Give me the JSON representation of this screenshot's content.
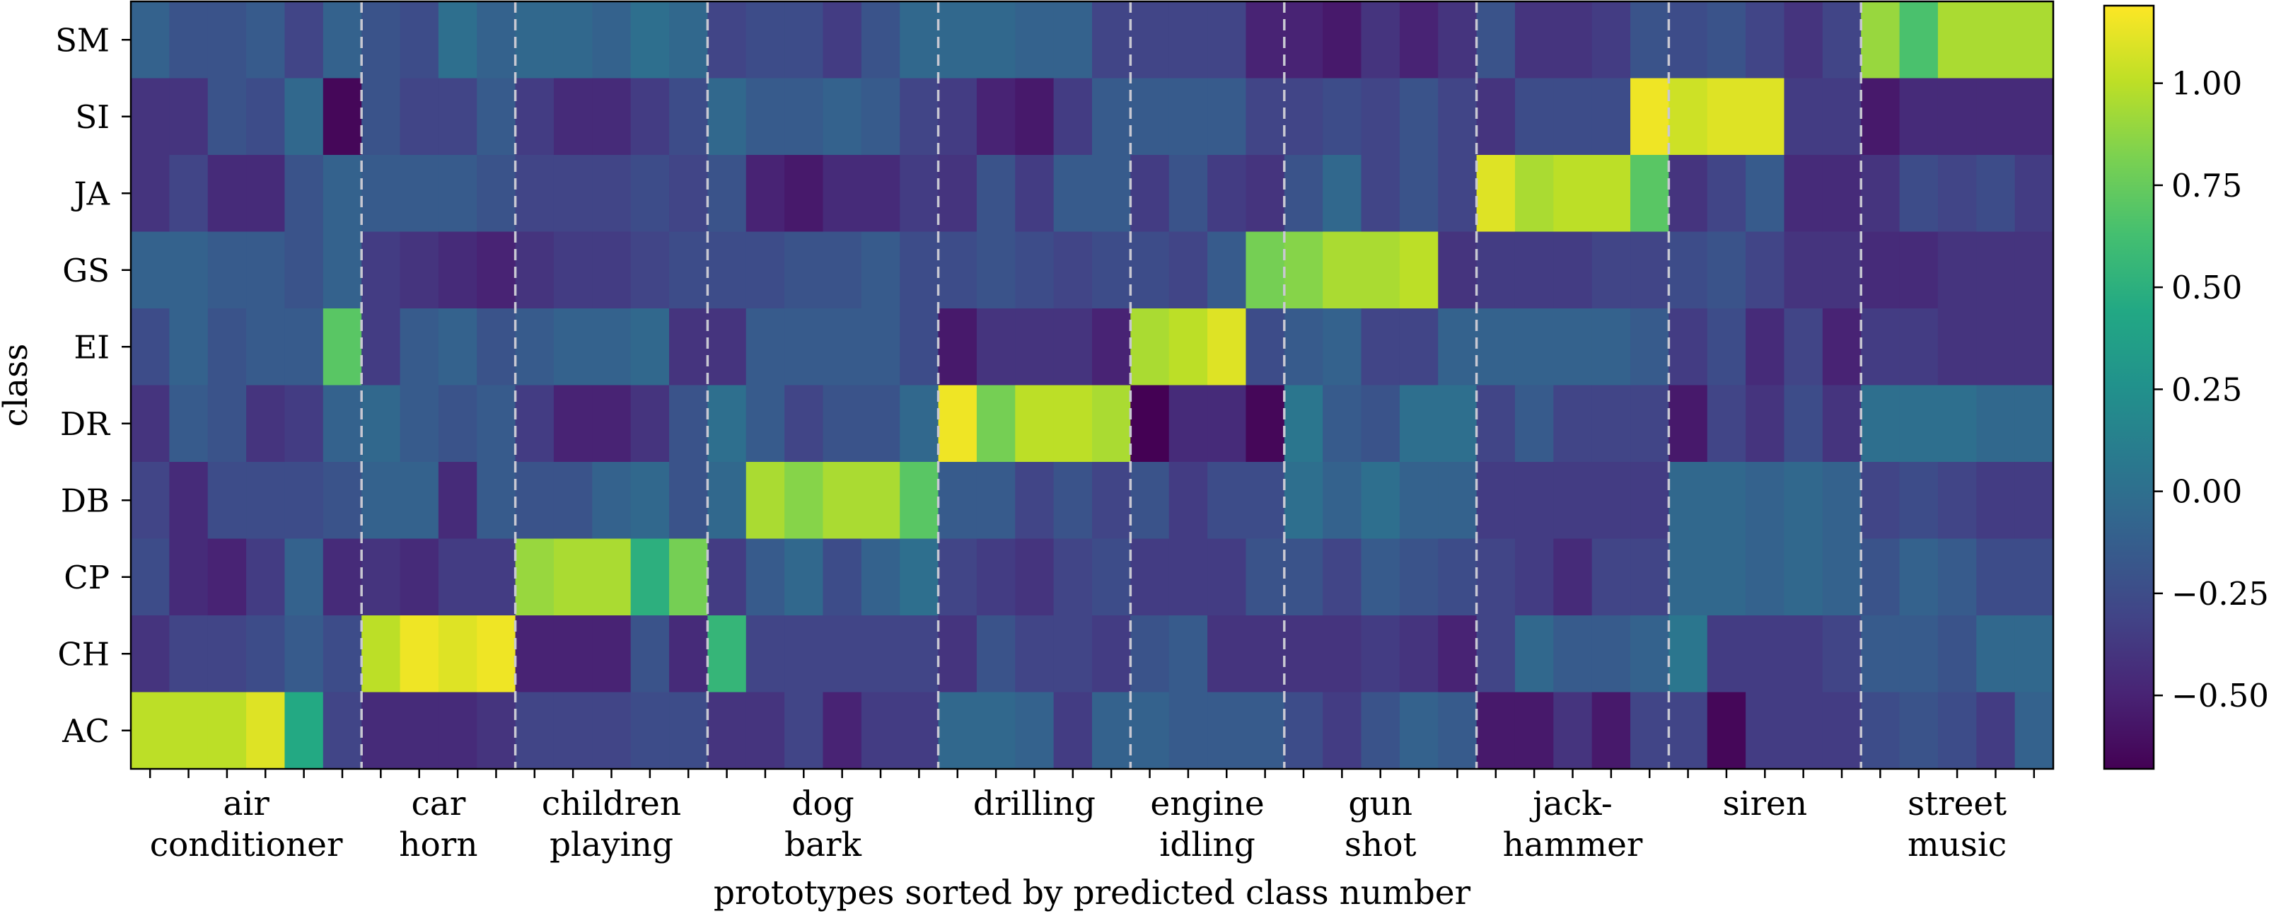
{
  "chart_data": {
    "type": "heatmap",
    "colormap": "viridis",
    "xlabel": "prototypes sorted by predicted class number",
    "ylabel": "class",
    "rows": [
      "SM",
      "SI",
      "JA",
      "GS",
      "EI",
      "DR",
      "DB",
      "CP",
      "CH",
      "AC"
    ],
    "groups": [
      {
        "lines": [
          "air",
          "conditioner"
        ],
        "count": 6
      },
      {
        "lines": [
          "car",
          "horn"
        ],
        "count": 4
      },
      {
        "lines": [
          "children",
          "playing"
        ],
        "count": 5
      },
      {
        "lines": [
          "dog",
          "bark"
        ],
        "count": 6
      },
      {
        "lines": [
          "drilling"
        ],
        "count": 5
      },
      {
        "lines": [
          "engine",
          "idling"
        ],
        "count": 4
      },
      {
        "lines": [
          "gun",
          "shot"
        ],
        "count": 5
      },
      {
        "lines": [
          "jack-",
          "hammer"
        ],
        "count": 5
      },
      {
        "lines": [
          "siren"
        ],
        "count": 5
      },
      {
        "lines": [
          "street",
          "music"
        ],
        "count": 5
      }
    ],
    "values": [
      [
        -0.1,
        -0.2,
        -0.2,
        -0.15,
        -0.3,
        -0.1,
        -0.2,
        -0.25,
        0.0,
        -0.1,
        -0.05,
        -0.05,
        -0.1,
        0.0,
        -0.05,
        -0.3,
        -0.25,
        -0.25,
        -0.35,
        -0.2,
        -0.05,
        -0.05,
        -0.05,
        -0.1,
        -0.1,
        -0.3,
        -0.3,
        -0.3,
        -0.3,
        -0.5,
        -0.5,
        -0.55,
        -0.4,
        -0.5,
        -0.4,
        -0.2,
        -0.4,
        -0.4,
        -0.35,
        -0.2,
        -0.25,
        -0.2,
        -0.3,
        -0.4,
        -0.3,
        0.9,
        0.65,
        0.95,
        0.95,
        0.95
      ],
      [
        -0.4,
        -0.4,
        -0.2,
        -0.25,
        -0.05,
        -0.65,
        -0.2,
        -0.3,
        -0.3,
        -0.15,
        -0.35,
        -0.45,
        -0.45,
        -0.35,
        -0.25,
        -0.05,
        -0.15,
        -0.15,
        -0.1,
        -0.15,
        -0.3,
        -0.35,
        -0.5,
        -0.55,
        -0.35,
        -0.15,
        -0.15,
        -0.15,
        -0.15,
        -0.3,
        -0.3,
        -0.25,
        -0.3,
        -0.2,
        -0.3,
        -0.4,
        -0.25,
        -0.25,
        -0.25,
        1.15,
        1.05,
        1.1,
        1.1,
        -0.35,
        -0.35,
        -0.55,
        -0.45,
        -0.45
      ],
      [
        -0.4,
        -0.3,
        -0.45,
        -0.45,
        -0.2,
        -0.1,
        -0.15,
        -0.15,
        -0.15,
        -0.2,
        -0.3,
        -0.3,
        -0.3,
        -0.25,
        -0.3,
        -0.2,
        -0.5,
        -0.55,
        -0.45,
        -0.45,
        -0.35,
        -0.4,
        -0.2,
        -0.35,
        -0.15,
        -0.15,
        -0.35,
        -0.2,
        -0.35,
        -0.4,
        -0.2,
        -0.05,
        -0.3,
        -0.2,
        -0.3,
        1.1,
        0.95,
        1.0,
        1.0,
        0.7,
        -0.4,
        -0.3,
        -0.15,
        -0.45,
        -0.45,
        -0.4,
        -0.25,
        -0.3,
        -0.25,
        -0.35
      ],
      [
        -0.1,
        -0.1,
        -0.15,
        -0.15,
        -0.2,
        -0.1,
        -0.35,
        -0.4,
        -0.45,
        -0.5,
        -0.4,
        -0.35,
        -0.35,
        -0.3,
        -0.25,
        -0.25,
        -0.25,
        -0.2,
        -0.2,
        -0.15,
        -0.25,
        -0.25,
        -0.2,
        -0.25,
        -0.3,
        -0.25,
        -0.25,
        -0.3,
        -0.15,
        0.8,
        0.85,
        0.95,
        0.95,
        1.0,
        -0.4,
        -0.35,
        -0.35,
        -0.35,
        -0.3,
        -0.3,
        -0.25,
        -0.2,
        -0.3,
        -0.4,
        -0.4,
        -0.45,
        -0.45,
        -0.4
      ],
      [
        -0.25,
        -0.1,
        -0.2,
        -0.15,
        -0.15,
        0.7,
        -0.35,
        -0.15,
        -0.1,
        -0.2,
        -0.15,
        -0.1,
        -0.1,
        -0.05,
        -0.4,
        -0.4,
        -0.15,
        -0.15,
        -0.15,
        -0.15,
        -0.25,
        -0.55,
        -0.4,
        -0.4,
        -0.4,
        -0.5,
        0.95,
        1.0,
        1.1,
        -0.25,
        -0.15,
        -0.1,
        -0.3,
        -0.3,
        -0.1,
        -0.1,
        -0.1,
        -0.1,
        -0.1,
        -0.15,
        -0.35,
        -0.25,
        -0.45,
        -0.3,
        -0.5,
        -0.35,
        -0.35,
        -0.4
      ],
      [
        -0.4,
        -0.15,
        -0.2,
        -0.4,
        -0.35,
        -0.1,
        -0.05,
        -0.15,
        -0.2,
        -0.15,
        -0.35,
        -0.5,
        -0.5,
        -0.4,
        -0.2,
        0.0,
        -0.15,
        -0.3,
        -0.2,
        -0.2,
        -0.05,
        1.15,
        0.8,
        1.0,
        1.0,
        0.95,
        -0.7,
        -0.45,
        -0.45,
        -0.65,
        0.05,
        -0.15,
        -0.2,
        0.0,
        0.0,
        -0.3,
        -0.15,
        -0.3,
        -0.3,
        -0.3,
        -0.55,
        -0.3,
        -0.4,
        -0.25,
        -0.4,
        0.0,
        0.0,
        0.0,
        -0.05
      ],
      [
        -0.3,
        -0.45,
        -0.25,
        -0.25,
        -0.25,
        -0.2,
        -0.1,
        -0.1,
        -0.45,
        -0.15,
        -0.2,
        -0.2,
        -0.1,
        -0.05,
        -0.2,
        -0.05,
        0.95,
        0.85,
        0.95,
        0.95,
        0.7,
        -0.15,
        -0.15,
        -0.3,
        -0.2,
        -0.3,
        -0.2,
        -0.35,
        -0.25,
        -0.25,
        0.0,
        -0.1,
        0.0,
        -0.1,
        -0.1,
        -0.35,
        -0.35,
        -0.35,
        -0.35,
        -0.35,
        -0.05,
        -0.05,
        -0.1,
        -0.05,
        -0.1,
        -0.3,
        -0.25,
        -0.3,
        -0.35
      ],
      [
        -0.25,
        -0.45,
        -0.5,
        -0.35,
        -0.1,
        -0.45,
        -0.4,
        -0.45,
        -0.35,
        -0.35,
        0.9,
        0.95,
        0.95,
        0.5,
        0.8,
        -0.35,
        -0.15,
        -0.05,
        -0.25,
        -0.1,
        0.0,
        -0.3,
        -0.35,
        -0.4,
        -0.3,
        -0.25,
        -0.35,
        -0.35,
        -0.35,
        -0.2,
        -0.2,
        -0.3,
        -0.15,
        -0.2,
        -0.25,
        -0.3,
        -0.35,
        -0.45,
        -0.3,
        -0.3,
        -0.05,
        -0.05,
        -0.1,
        -0.05,
        -0.1,
        -0.2,
        -0.1,
        -0.15,
        -0.25
      ],
      [
        -0.4,
        -0.3,
        -0.3,
        -0.25,
        -0.15,
        -0.25,
        1.0,
        1.15,
        1.1,
        1.15,
        -0.5,
        -0.5,
        -0.5,
        -0.2,
        -0.45,
        0.55,
        -0.3,
        -0.3,
        -0.3,
        -0.3,
        -0.3,
        -0.4,
        -0.2,
        -0.3,
        -0.3,
        -0.35,
        -0.2,
        -0.15,
        -0.4,
        -0.4,
        -0.4,
        -0.4,
        -0.35,
        -0.4,
        -0.5,
        -0.3,
        -0.05,
        -0.15,
        -0.15,
        -0.1,
        0.05,
        -0.35,
        -0.35,
        -0.35,
        -0.3,
        -0.15,
        -0.15,
        -0.2,
        -0.05
      ],
      [
        1.0,
        1.0,
        1.0,
        1.1,
        0.45,
        -0.3,
        -0.45,
        -0.45,
        -0.45,
        -0.4,
        -0.3,
        -0.3,
        -0.3,
        -0.25,
        -0.25,
        -0.4,
        -0.4,
        -0.3,
        -0.5,
        -0.35,
        -0.35,
        -0.05,
        -0.05,
        -0.1,
        -0.35,
        -0.1,
        -0.1,
        -0.15,
        -0.15,
        -0.15,
        -0.25,
        -0.35,
        -0.2,
        -0.1,
        -0.15,
        -0.55,
        -0.55,
        -0.4,
        -0.55,
        -0.3,
        -0.3,
        -0.65,
        -0.35,
        -0.35,
        -0.35,
        -0.25,
        -0.2,
        -0.25,
        -0.35,
        -0.1
      ]
    ],
    "vmin": -0.68,
    "vmax": 1.19,
    "colorbar_ticks": [
      {
        "value": 1.0,
        "label": "1.00"
      },
      {
        "value": 0.75,
        "label": "0.75"
      },
      {
        "value": 0.5,
        "label": "0.50"
      },
      {
        "value": 0.25,
        "label": "0.25"
      },
      {
        "value": 0.0,
        "label": "0.00"
      },
      {
        "value": -0.25,
        "label": "−0.25"
      },
      {
        "value": -0.5,
        "label": "−0.50"
      }
    ],
    "separator_style": "dashed",
    "grid": false
  }
}
